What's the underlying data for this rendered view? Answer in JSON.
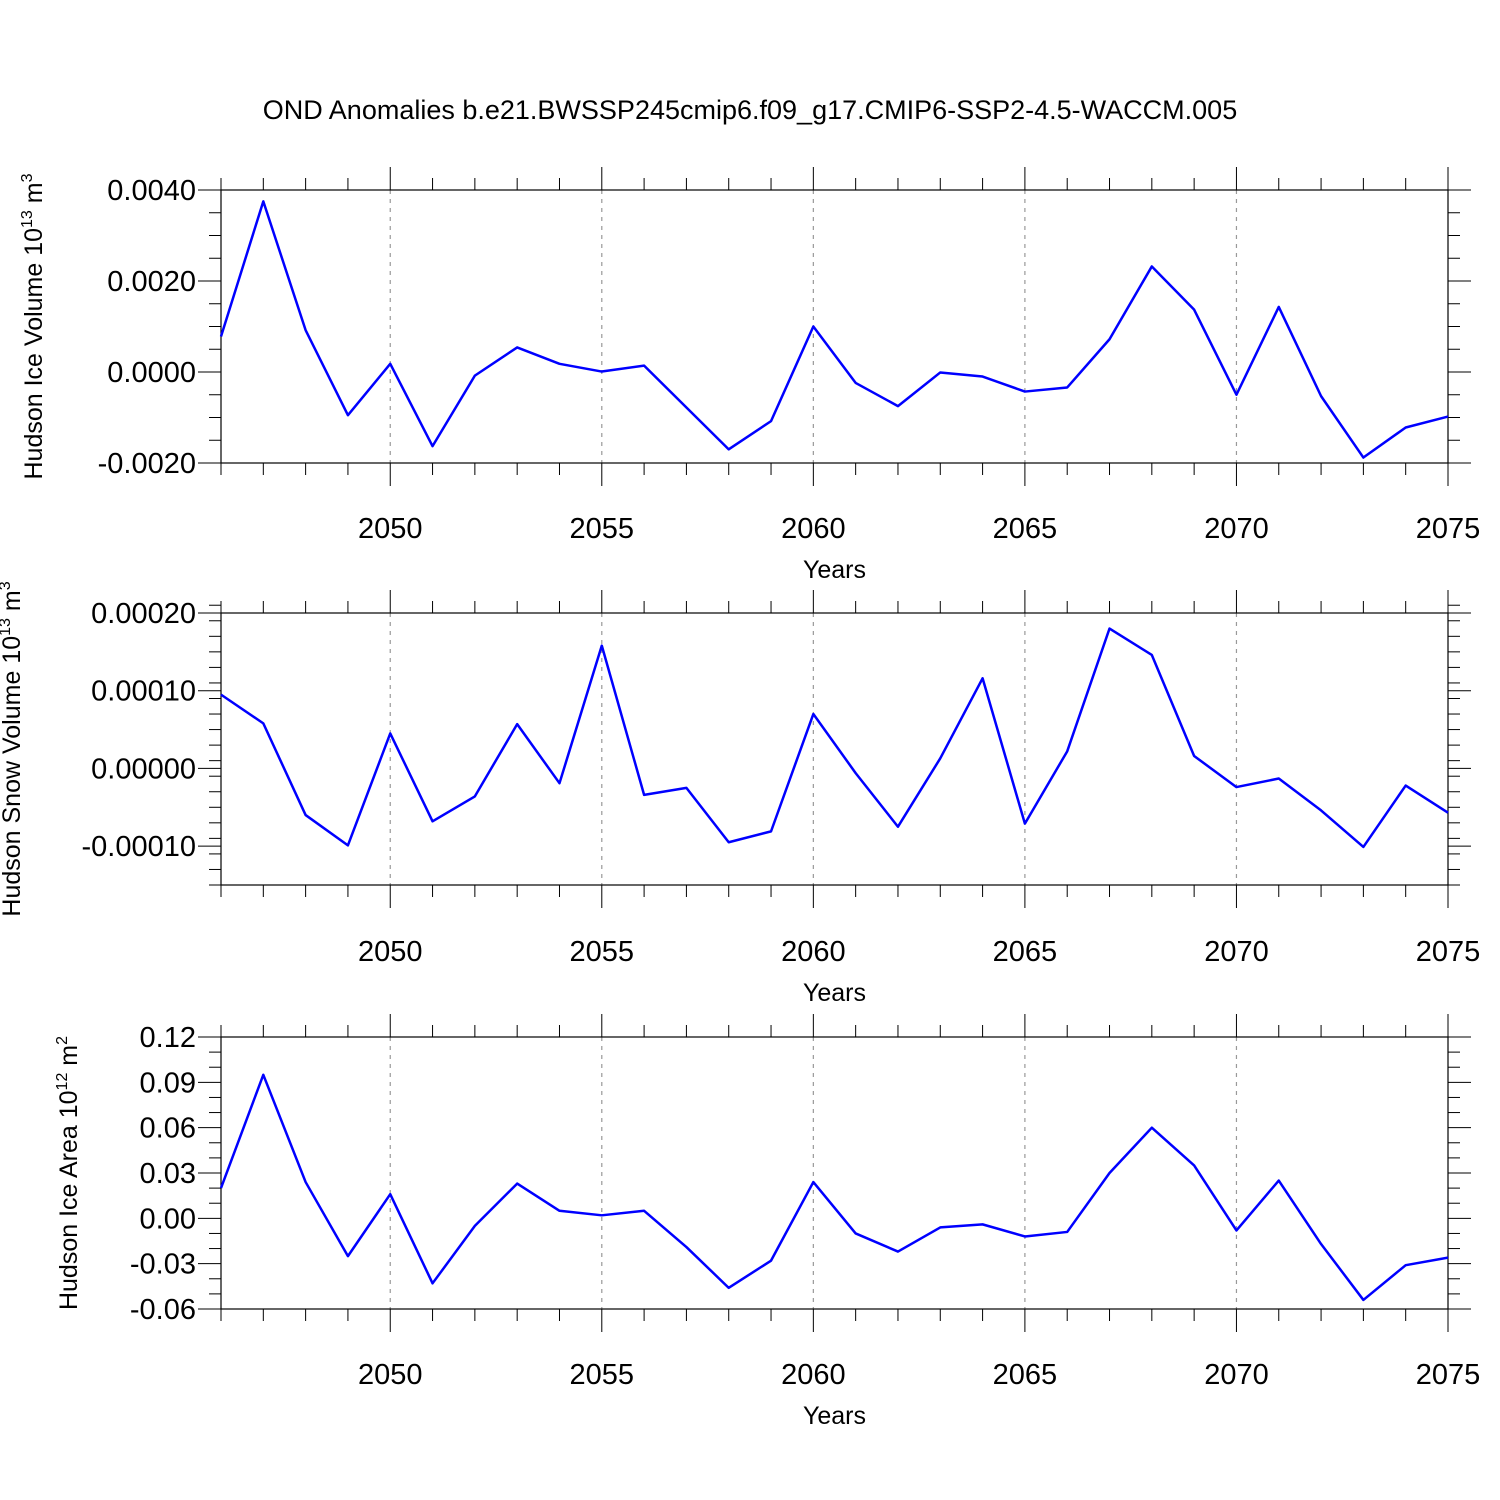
{
  "figure": {
    "title": "OND Anomalies b.e21.BWSSP245cmip6.f09_g17.CMIP6-SSP2-4.5-WACCM.005",
    "background": "#ffffff",
    "line_color": "#0000ff",
    "grid_color": "#999999"
  },
  "chart_data": [
    {
      "type": "line",
      "title": "",
      "xlabel": "Years",
      "ylabel_main": "Hudson Ice Volume 10",
      "ylabel_exp": "13",
      "ylabel_unit": "m",
      "ylabel_unit_exp": "3",
      "xlim": [
        2046,
        2075
      ],
      "ylim": [
        -0.002,
        0.004
      ],
      "x_ticks": [
        2050,
        2055,
        2060,
        2065,
        2070,
        2075
      ],
      "x_tick_labels": [
        "2050",
        "2055",
        "2060",
        "2065",
        "2070",
        "2075"
      ],
      "y_ticks": [
        -0.002,
        0.0,
        0.002,
        0.004
      ],
      "y_tick_labels": [
        "-0.0020",
        "0.0000",
        "0.0020",
        "0.0040"
      ],
      "y_minor_step": 0.0005,
      "grid": "vertical dashed at labeled x ticks",
      "x": [
        2046,
        2047,
        2048,
        2049,
        2050,
        2051,
        2052,
        2053,
        2054,
        2055,
        2056,
        2057,
        2058,
        2059,
        2060,
        2061,
        2062,
        2063,
        2064,
        2065,
        2066,
        2067,
        2068,
        2069,
        2070,
        2071,
        2072,
        2073,
        2074,
        2075
      ],
      "series": [
        {
          "values": [
            0.00078,
            0.00375,
            0.00092,
            -0.00095,
            0.00018,
            -0.00163,
            -8e-05,
            0.00054,
            0.00018,
            1e-05,
            0.00014,
            -0.00078,
            -0.0017,
            -0.00108,
            0.001,
            -0.00024,
            -0.00075,
            -1e-05,
            -0.0001,
            -0.00043,
            -0.00034,
            0.00072,
            0.00232,
            0.00137,
            -0.0005,
            0.00143,
            -0.00053,
            -0.00188,
            -0.00122,
            -0.00098
          ]
        }
      ]
    },
    {
      "type": "line",
      "title": "",
      "xlabel": "Years",
      "ylabel_main": "Hudson Snow Volume 10",
      "ylabel_exp": "13",
      "ylabel_unit": "m",
      "ylabel_unit_exp": "3",
      "xlim": [
        2046,
        2075
      ],
      "ylim": [
        -0.00015,
        0.0002
      ],
      "x_ticks": [
        2050,
        2055,
        2060,
        2065,
        2070,
        2075
      ],
      "x_tick_labels": [
        "2050",
        "2055",
        "2060",
        "2065",
        "2070",
        "2075"
      ],
      "y_ticks": [
        -0.0001,
        0.0,
        0.0001,
        0.0002
      ],
      "y_tick_labels": [
        "-0.00010",
        "0.00000",
        "0.00010",
        "0.00020"
      ],
      "y_minor_step": 2e-05,
      "grid": "vertical dashed at labeled x ticks",
      "x": [
        2046,
        2047,
        2048,
        2049,
        2050,
        2051,
        2052,
        2053,
        2054,
        2055,
        2056,
        2057,
        2058,
        2059,
        2060,
        2061,
        2062,
        2063,
        2064,
        2065,
        2066,
        2067,
        2068,
        2069,
        2070,
        2071,
        2072,
        2073,
        2074,
        2075
      ],
      "series": [
        {
          "values": [
            9.5e-05,
            5.8e-05,
            -6e-05,
            -9.9e-05,
            4.5e-05,
            -6.8e-05,
            -3.6e-05,
            5.7e-05,
            -1.9e-05,
            0.000158,
            -3.4e-05,
            -2.5e-05,
            -9.5e-05,
            -8.1e-05,
            7e-05,
            -6e-06,
            -7.5e-05,
            1.3e-05,
            0.000116,
            -7.1e-05,
            2.2e-05,
            0.00018,
            0.000146,
            1.6e-05,
            -2.4e-05,
            -1.3e-05,
            -5.4e-05,
            -0.000101,
            -2.2e-05,
            -5.7e-05
          ]
        }
      ]
    },
    {
      "type": "line",
      "title": "",
      "xlabel": "Years",
      "ylabel_main": "Hudson Ice Area 10",
      "ylabel_exp": "12",
      "ylabel_unit": "m",
      "ylabel_unit_exp": "2",
      "xlim": [
        2046,
        2075
      ],
      "ylim": [
        -0.06,
        0.12
      ],
      "x_ticks": [
        2050,
        2055,
        2060,
        2065,
        2070,
        2075
      ],
      "x_tick_labels": [
        "2050",
        "2055",
        "2060",
        "2065",
        "2070",
        "2075"
      ],
      "y_ticks": [
        -0.06,
        -0.03,
        0.0,
        0.03,
        0.06,
        0.09,
        0.12
      ],
      "y_tick_labels": [
        "-0.06",
        "-0.03",
        "0.00",
        "0.03",
        "0.06",
        "0.09",
        "0.12"
      ],
      "y_minor_step": 0.01,
      "grid": "vertical dashed at labeled x ticks",
      "x": [
        2046,
        2047,
        2048,
        2049,
        2050,
        2051,
        2052,
        2053,
        2054,
        2055,
        2056,
        2057,
        2058,
        2059,
        2060,
        2061,
        2062,
        2063,
        2064,
        2065,
        2066,
        2067,
        2068,
        2069,
        2070,
        2071,
        2072,
        2073,
        2074,
        2075
      ],
      "series": [
        {
          "values": [
            0.02,
            0.095,
            0.024,
            -0.025,
            0.016,
            -0.043,
            -0.005,
            0.023,
            0.005,
            0.002,
            0.005,
            -0.019,
            -0.046,
            -0.028,
            0.024,
            -0.01,
            -0.022,
            -0.006,
            -0.004,
            -0.012,
            -0.009,
            0.03,
            0.06,
            0.035,
            -0.008,
            0.025,
            -0.017,
            -0.054,
            -0.031,
            -0.026
          ]
        }
      ]
    }
  ]
}
